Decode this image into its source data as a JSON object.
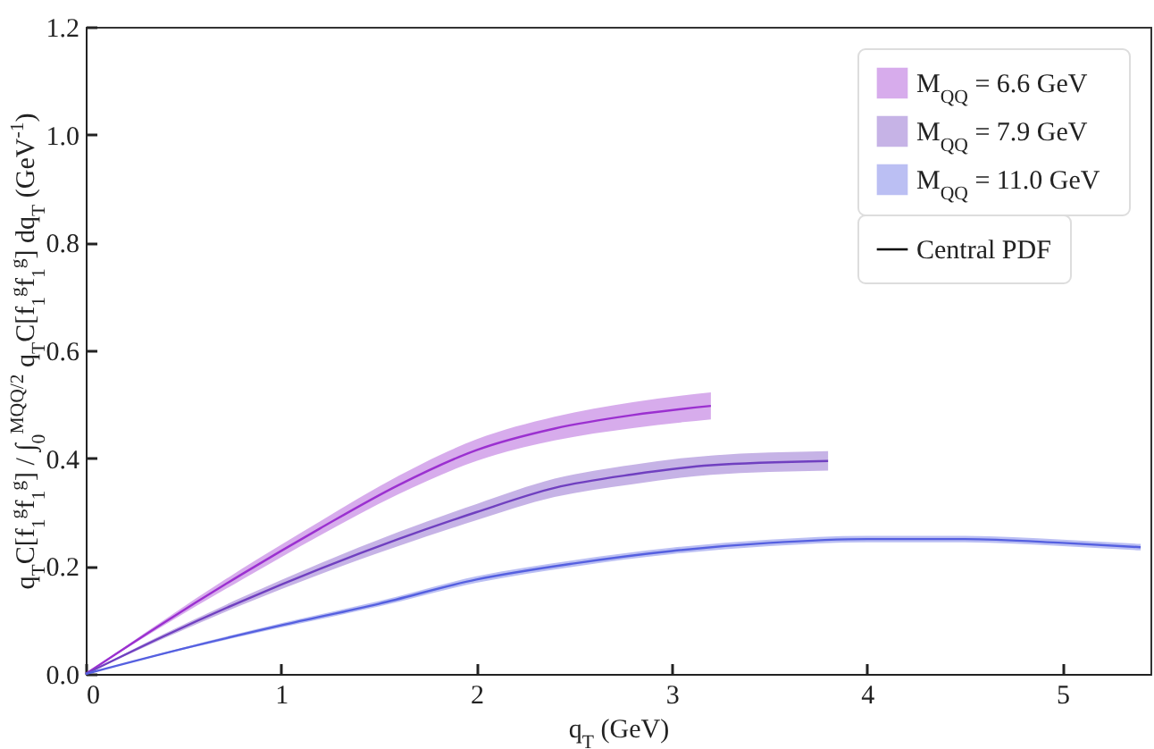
{
  "chart_data": {
    "type": "line",
    "xlabel": "q$_{T}$ (GeV)",
    "ylabel": "q$_{T}$C[f$_{1}$$^{g}$f$_{1}$$^{g}$] / ∫$_{0}$$^{MQQ/2}$ q$_{T}$C[f$_{1}$$^{g}$f$_{1}$$^{g}$] dq$_{T}$ (GeV$^{-1}$)",
    "xlim": [
      0,
      5.45
    ],
    "ylim": [
      0,
      1.2
    ],
    "xticks": [
      0,
      1,
      2,
      3,
      4,
      5
    ],
    "yticks": [
      {
        "value": 0,
        "label": "0.0"
      },
      0.2,
      0.4,
      0.6,
      0.8,
      {
        "value": 1,
        "label": "1.0"
      },
      1.2
    ],
    "legend": "top right",
    "annotations": [
      "Central PDF"
    ],
    "series": [
      {
        "name": "M$_{QQ}$ = 6.6 GeV",
        "color": "#9b30d0",
        "x": [
          0,
          0.4,
          0.8,
          1.2,
          1.6,
          2.0,
          2.4,
          2.8,
          3.2
        ],
        "values": [
          0,
          0.095,
          0.185,
          0.27,
          0.35,
          0.415,
          0.455,
          0.48,
          0.497
        ],
        "lower": [
          0,
          0.09,
          0.175,
          0.257,
          0.333,
          0.395,
          0.433,
          0.456,
          0.472
        ],
        "upper": [
          0,
          0.1,
          0.195,
          0.283,
          0.367,
          0.435,
          0.477,
          0.504,
          0.522
        ]
      },
      {
        "name": "M$_{QQ}$ = 7.9 GeV",
        "color": "#7040c0",
        "x": [
          0,
          0.4,
          0.8,
          1.2,
          1.6,
          2.0,
          2.4,
          2.8,
          3.2,
          3.8
        ],
        "values": [
          0,
          0.07,
          0.135,
          0.195,
          0.25,
          0.3,
          0.345,
          0.37,
          0.387,
          0.395
        ],
        "lower": [
          0,
          0.066,
          0.128,
          0.185,
          0.237,
          0.285,
          0.328,
          0.352,
          0.369,
          0.377
        ],
        "upper": [
          0,
          0.074,
          0.142,
          0.205,
          0.263,
          0.315,
          0.362,
          0.388,
          0.405,
          0.413
        ]
      },
      {
        "name": "M$_{QQ}$ = 11.0 GeV",
        "color": "#5560e0",
        "x": [
          0,
          0.5,
          1,
          1.5,
          2,
          2.5,
          3,
          3.5,
          4,
          4.5,
          5,
          5.4
        ],
        "values": [
          0,
          0.047,
          0.09,
          0.13,
          0.175,
          0.205,
          0.228,
          0.243,
          0.25,
          0.25,
          0.243,
          0.235
        ],
        "lower": [
          0,
          0.045,
          0.086,
          0.125,
          0.169,
          0.199,
          0.222,
          0.237,
          0.244,
          0.244,
          0.237,
          0.229
        ],
        "upper": [
          0,
          0.049,
          0.094,
          0.135,
          0.181,
          0.211,
          0.234,
          0.249,
          0.256,
          0.256,
          0.249,
          0.241
        ]
      }
    ]
  }
}
